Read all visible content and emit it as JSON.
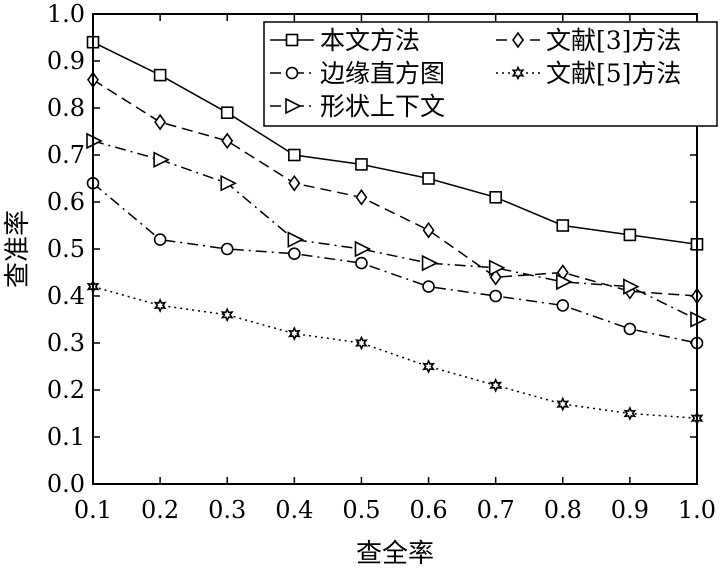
{
  "chart_data": {
    "type": "line",
    "xlabel": "查全率",
    "ylabel": "查准率",
    "xlim": [
      0.1,
      1.0
    ],
    "ylim": [
      0.0,
      1.0
    ],
    "x": [
      0.1,
      0.2,
      0.3,
      0.4,
      0.5,
      0.6,
      0.7,
      0.8,
      0.9,
      1.0
    ],
    "x_tick_labels": [
      "0.1",
      "0.2",
      "0.3",
      "0.4",
      "0.5",
      "0.6",
      "0.7",
      "0.8",
      "0.9",
      "1.0"
    ],
    "y_ticks": [
      0.0,
      0.1,
      0.2,
      0.3,
      0.4,
      0.5,
      0.6,
      0.7,
      0.8,
      0.9,
      1.0
    ],
    "y_tick_labels": [
      "0.0",
      "0.1",
      "0.2",
      "0.3",
      "0.4",
      "0.5",
      "0.6",
      "0.7",
      "0.8",
      "0.9",
      "1.0"
    ],
    "grid": false,
    "legend_position": "top-right",
    "series": [
      {
        "name": "本文方法",
        "marker": "square",
        "dash": "solid",
        "values": [
          0.94,
          0.87,
          0.79,
          0.7,
          0.68,
          0.65,
          0.61,
          0.55,
          0.53,
          0.51
        ]
      },
      {
        "name": "文献[3]方法",
        "marker": "diamond",
        "dash": "dashed",
        "values": [
          0.86,
          0.77,
          0.73,
          0.64,
          0.61,
          0.54,
          0.44,
          0.45,
          0.41,
          0.4
        ]
      },
      {
        "name": "边缘直方图",
        "marker": "circle",
        "dash": "dashdot",
        "values": [
          0.64,
          0.52,
          0.5,
          0.49,
          0.47,
          0.42,
          0.4,
          0.38,
          0.33,
          0.3
        ]
      },
      {
        "name": "文献[5]方法",
        "marker": "star",
        "dash": "dotted",
        "values": [
          0.42,
          0.38,
          0.36,
          0.32,
          0.3,
          0.25,
          0.21,
          0.17,
          0.15,
          0.14
        ]
      },
      {
        "name": "形状上下文",
        "marker": "triangle-right",
        "dash": "dashdot",
        "values": [
          0.73,
          0.69,
          0.64,
          0.52,
          0.5,
          0.47,
          0.46,
          0.43,
          0.42,
          0.35
        ]
      }
    ],
    "legend_order": [
      0,
      1,
      2,
      3,
      4
    ]
  }
}
